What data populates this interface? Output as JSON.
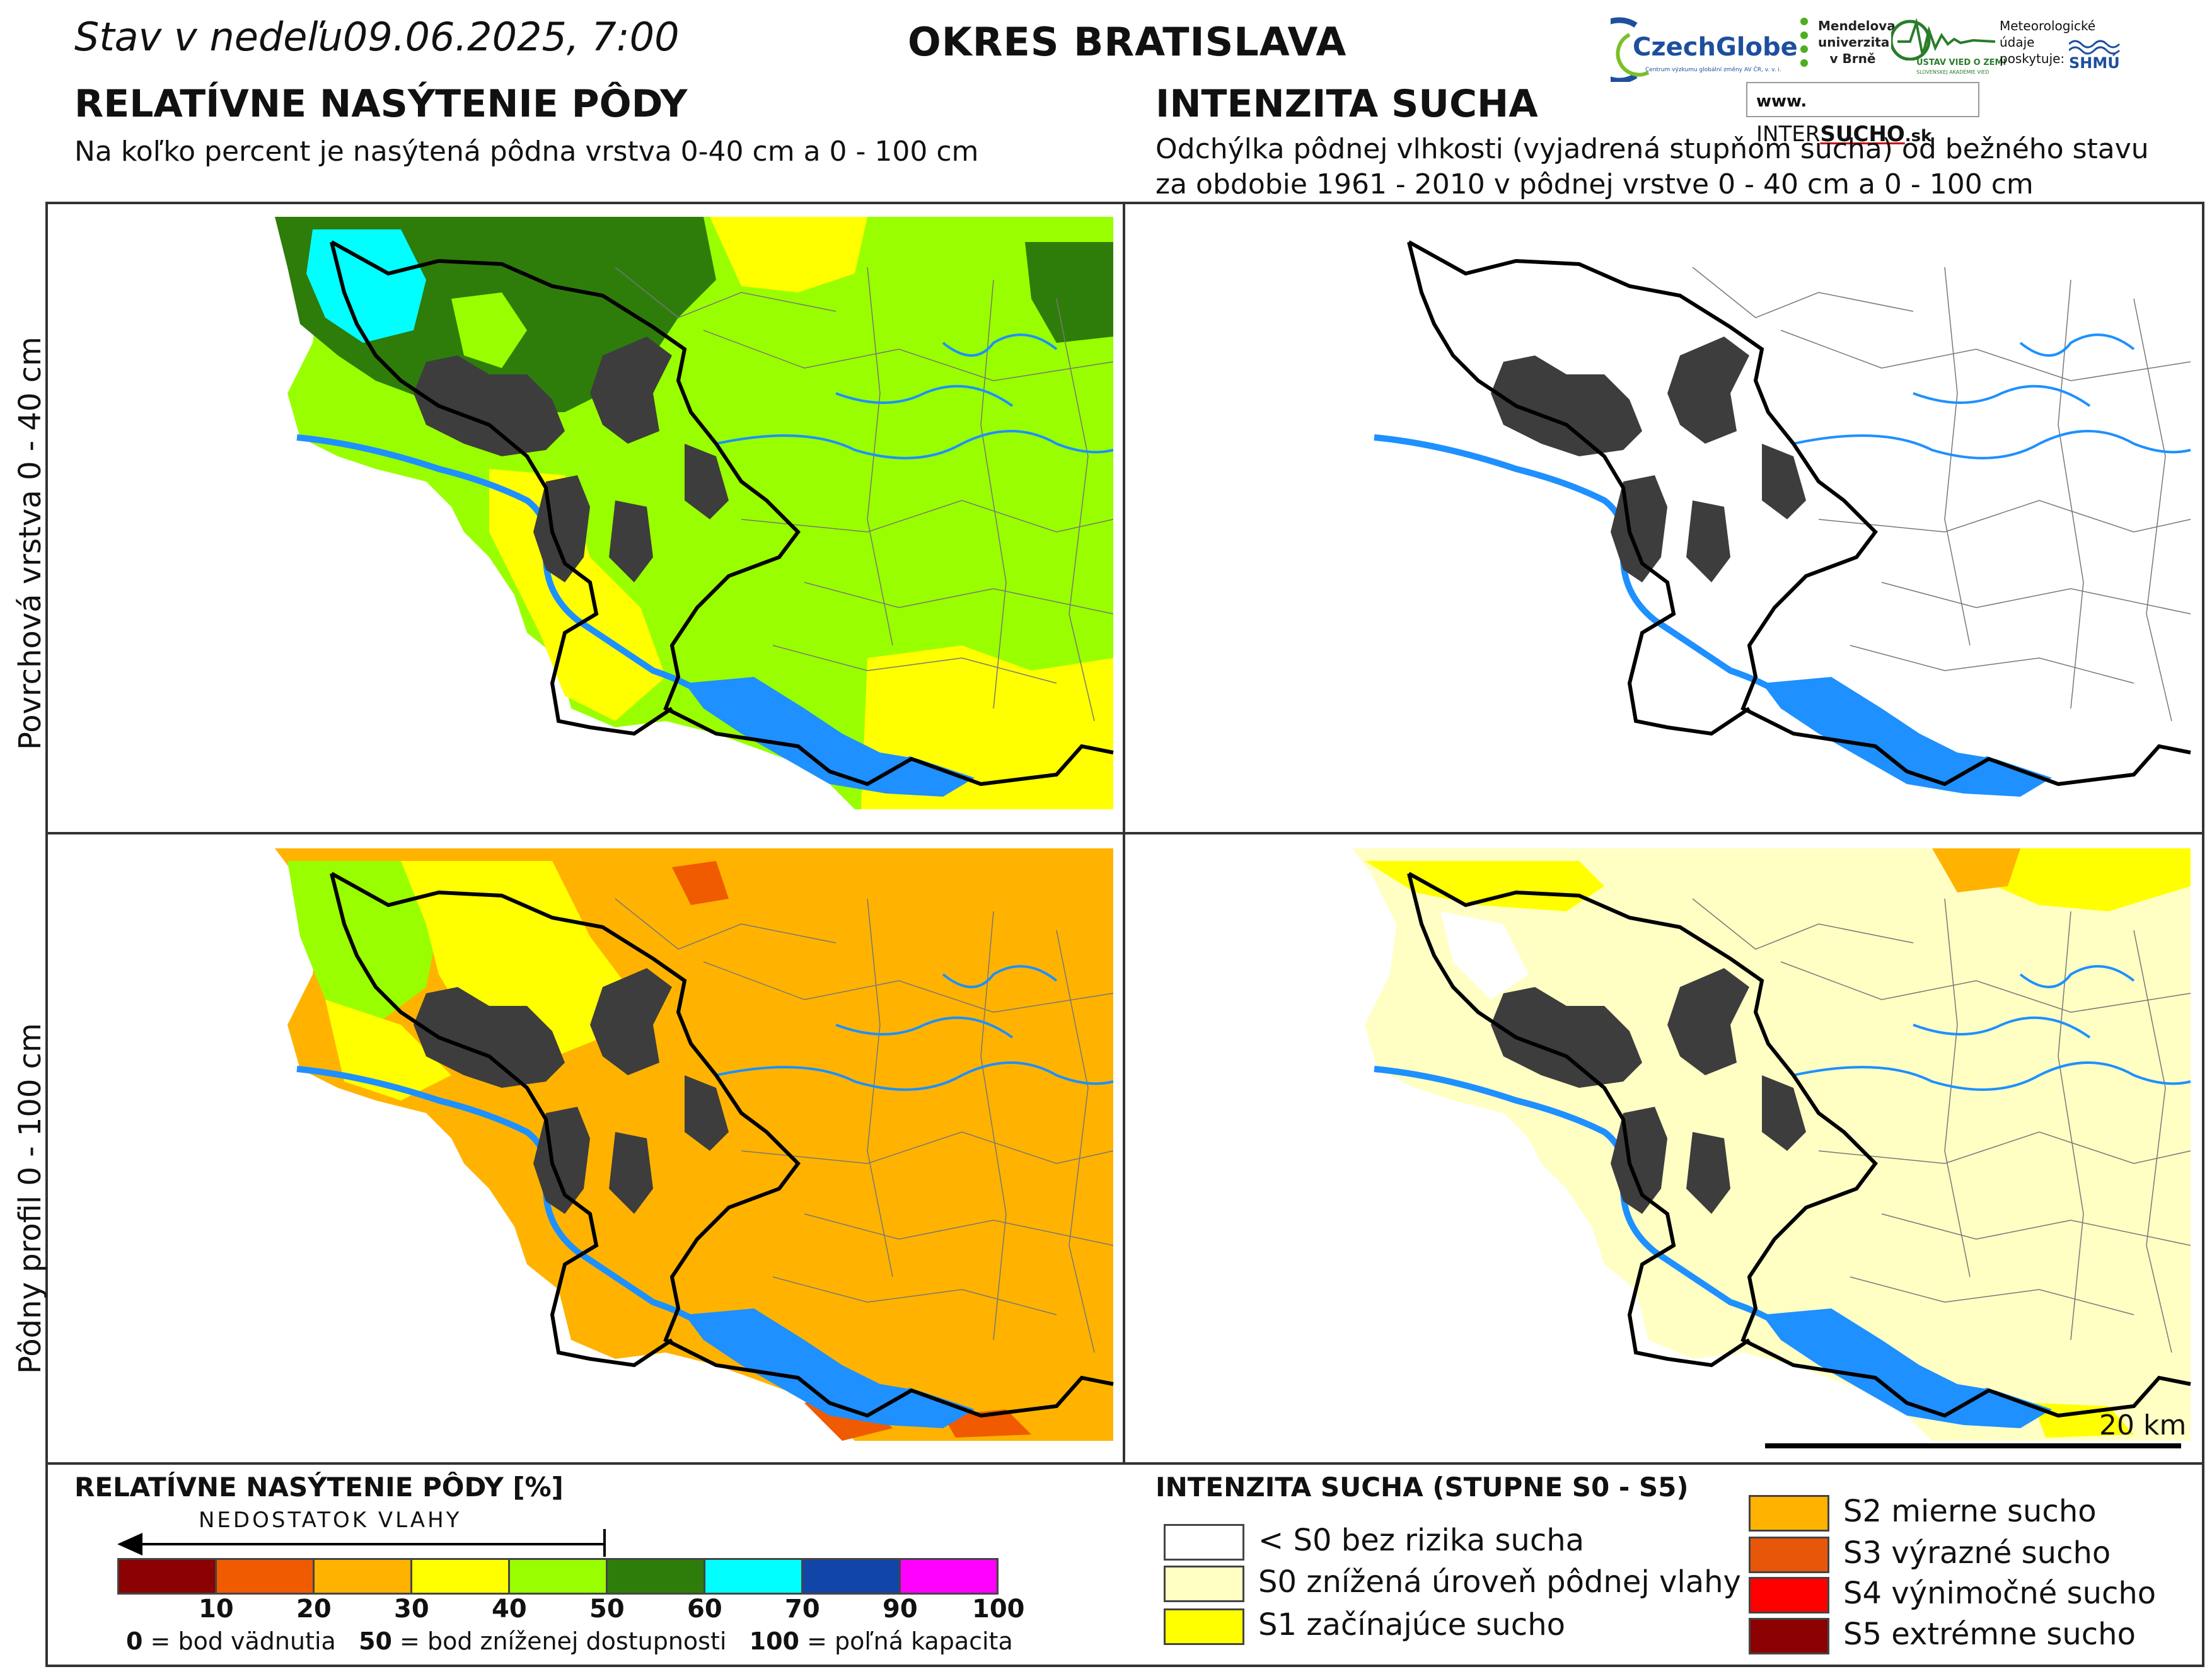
{
  "header": {
    "status_label": "Stav v nedeľu",
    "date_time": "09.06.2025, 7:00",
    "district": "OKRES  BRATISLAVA"
  },
  "logos": {
    "czechglobe": "CzechGlobe",
    "czechglobe_sub": "Centrum výzkumu globální změny AV ČR, v. v. i.",
    "mendel": "Mendelova univerzita v Brně",
    "ustav": "ÚSTAV VIED O ZEMI",
    "ustav_sub": "SLOVENSKEJ AKADÉMIE VIED",
    "meteo_provider": "Meteorologické údaje poskytuje:",
    "shmu": "SHMÚ",
    "website_prefix": "www.",
    "website_inter": "INTER",
    "website_sucho": "SUCHO",
    "website_suffix": ".sk"
  },
  "left_panel": {
    "title": "RELATÍVNE NASÝTENIE PÔDY",
    "subtitle": "Na koľko percent je nasýtená pôdna vrstva 0-40 cm a 0 - 100 cm"
  },
  "right_panel": {
    "title": "INTENZITA SUCHA",
    "subtitle_line1": "Odchýlka pôdnej vlhkosti (vyjadrená stupňom sucha) od bežného stavu",
    "subtitle_line2": "za obdobie 1961 - 2010 v pôdnej vrstve 0 - 40 cm a 0 - 100 cm"
  },
  "rows": {
    "top_label": "Povrchová vrstva 0 - 40 cm",
    "bottom_label": "Pôdny profil 0 - 100 cm"
  },
  "scale_bar": "20 km",
  "legend_saturation": {
    "title": "RELATÍVNE NASÝTENIE PÔDY [%]",
    "arrow_label": "NEDOSTATOK  VLAHY",
    "bins": [
      {
        "from": 0,
        "to": 10,
        "color": "#8b0000"
      },
      {
        "from": 10,
        "to": 20,
        "color": "#f05a00"
      },
      {
        "from": 20,
        "to": 30,
        "color": "#ffb300"
      },
      {
        "from": 30,
        "to": 40,
        "color": "#ffff00"
      },
      {
        "from": 40,
        "to": 50,
        "color": "#99ff00"
      },
      {
        "from": 50,
        "to": 60,
        "color": "#2e7d0a"
      },
      {
        "from": 60,
        "to": 70,
        "color": "#00ffff"
      },
      {
        "from": 70,
        "to": 90,
        "color": "#1245a8"
      },
      {
        "from": 90,
        "to": 100,
        "color": "#ff00ff"
      }
    ],
    "ticks": [
      "10",
      "20",
      "30",
      "40",
      "50",
      "60",
      "70",
      "90",
      "100"
    ],
    "note_0_num": "0",
    "note_0_text": " = bod vädnutia",
    "note_50_num": "50",
    "note_50_text": " = bod zníženej dostupnosti",
    "note_100_num": "100",
    "note_100_text": " = poľná kapacita"
  },
  "legend_drought": {
    "title": "INTENZITA SUCHA (STUPNE S0 - S5)",
    "items": [
      {
        "label": "< S0 bez rizika sucha",
        "color": "#ffffff"
      },
      {
        "label": "S0 znížená úroveň pôdnej vlahy",
        "color": "#ffffc4"
      },
      {
        "label": "S1 začínajúce sucho",
        "color": "#ffff00"
      },
      {
        "label": "S2 mierne sucho",
        "color": "#ffb300"
      },
      {
        "label": "S3 výrazné sucho",
        "color": "#e8560a"
      },
      {
        "label": "S4 výnimočné sucho",
        "color": "#ff0000"
      },
      {
        "label": "S5 extrémne sucho",
        "color": "#8b0000"
      }
    ]
  },
  "colors": {
    "urban": "#3d3d3d",
    "water": "#1e90ff",
    "boundary": "#000000"
  }
}
